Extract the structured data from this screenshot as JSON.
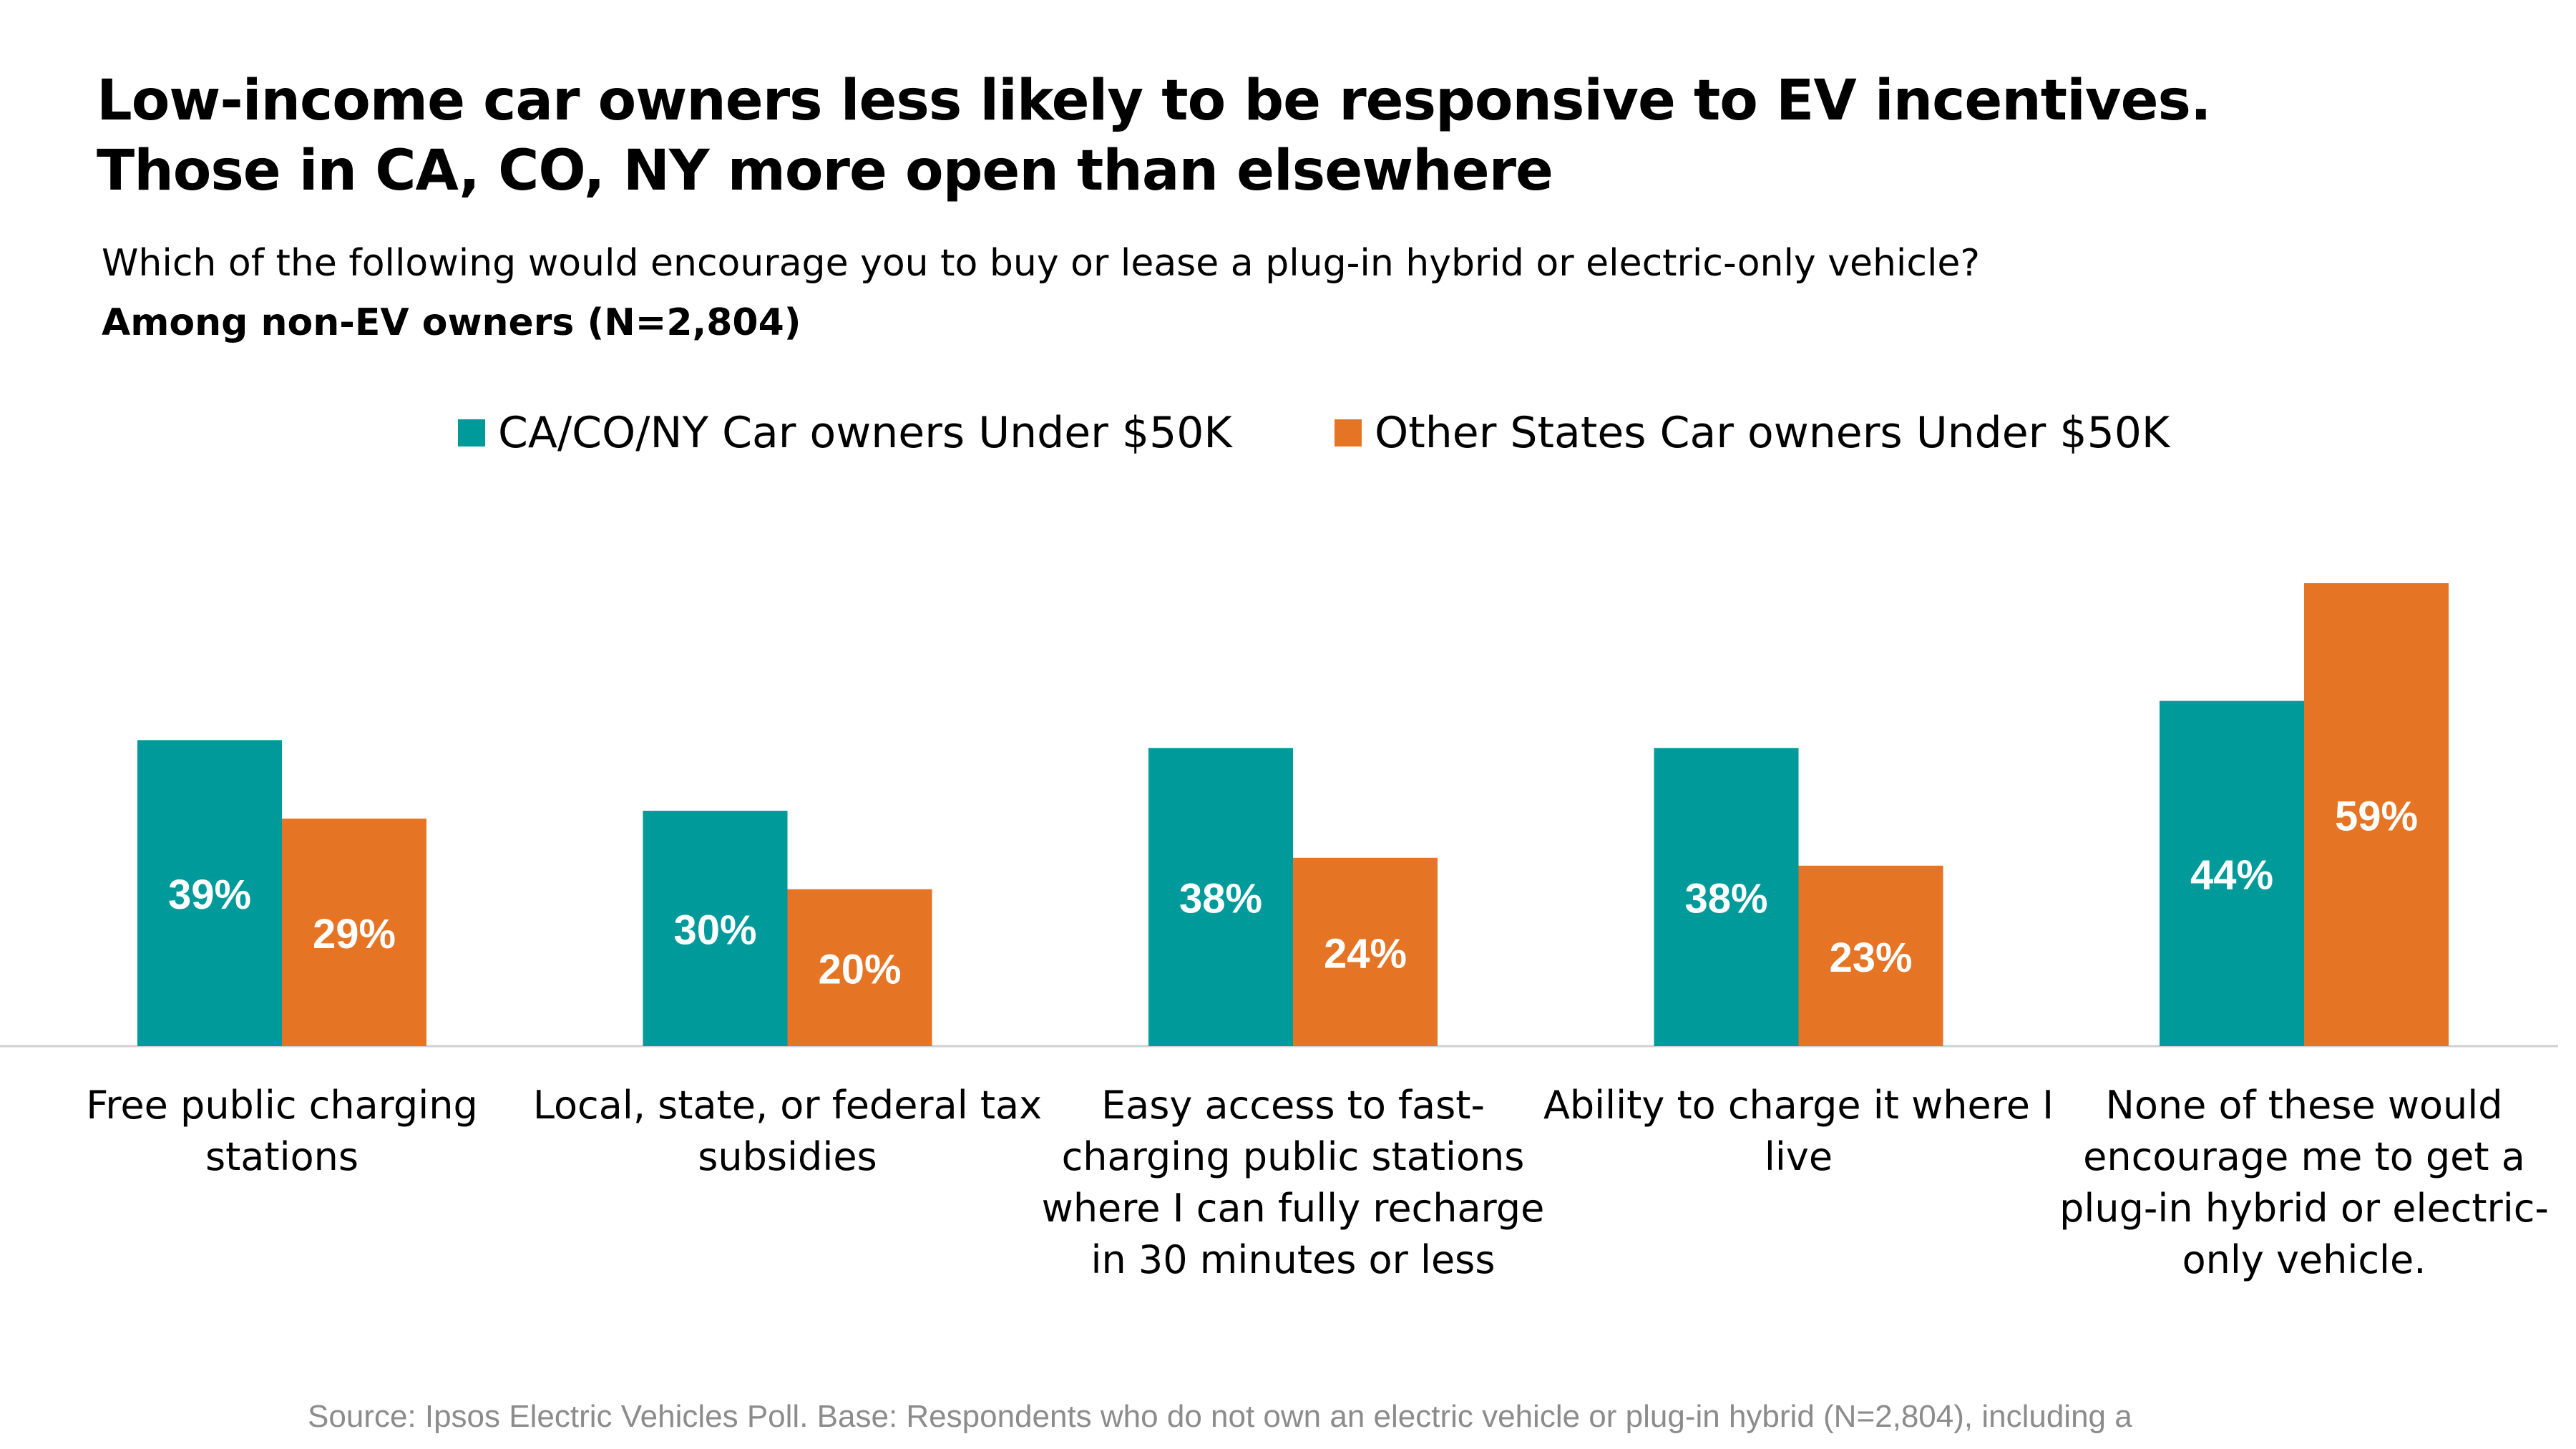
{
  "title_line1": "Low-income car owners less likely to be responsive to EV incentives.",
  "title_line2": "Those in CA, CO, NY more open than elsewhere",
  "question": "Which of the following would encourage you to buy or lease a plug-in hybrid or electric-only vehicle?",
  "base_note": "Among non-EV owners (N=2,804)",
  "source": "Source: Ipsos Electric Vehicles Poll. Base: Respondents who do not own an electric vehicle or plug-in hybrid (N=2,804), including a",
  "colors": {
    "series1": "#009A9A",
    "series2": "#E67425",
    "axis": "#d0d0d0",
    "label": "#ffffff"
  },
  "chart_data": {
    "type": "bar",
    "categories": [
      [
        "Free public charging",
        "stations"
      ],
      [
        "Local, state, or federal tax",
        "subsidies"
      ],
      [
        "Easy access to fast-",
        "charging public stations",
        "where I can fully recharge",
        "in 30 minutes or less"
      ],
      [
        "Ability to charge it where I",
        "live"
      ],
      [
        "None of these would",
        "encourage me to get a",
        "plug-in hybrid or electric-",
        "only vehicle."
      ]
    ],
    "series": [
      {
        "name": "CA/CO/NY Car owners Under $50K",
        "values": [
          39,
          30,
          38,
          38,
          44
        ],
        "labels": [
          "39%",
          "30%",
          "38%",
          "38%",
          "44%"
        ]
      },
      {
        "name": "Other States Car owners Under $50K",
        "values": [
          29,
          20,
          24,
          23,
          59
        ],
        "labels": [
          "29%",
          "20%",
          "24%",
          "23%",
          "59%"
        ]
      }
    ],
    "ylim": [
      0,
      59
    ],
    "legend_position": "top",
    "grid": false
  }
}
